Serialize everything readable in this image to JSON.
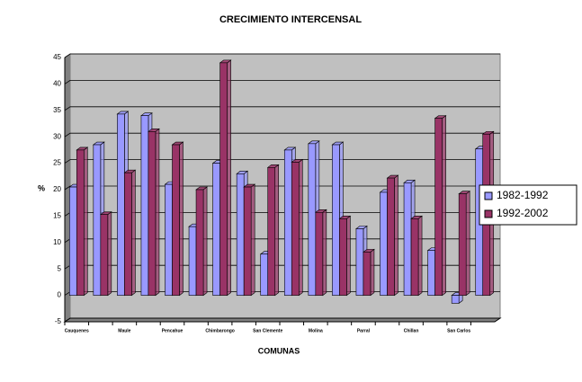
{
  "chart_data": {
    "type": "bar",
    "title": "CRECIMIENTO INTERCENSAL",
    "x_label": "COMUNAS",
    "y_label": "%",
    "categories": [
      "Cauquenes",
      null,
      "Maule",
      null,
      "Pencahue",
      null,
      "Chimbarongo",
      null,
      "San Clemente",
      null,
      "Molina",
      null,
      "Parral",
      null,
      "Chillan",
      null,
      "San Carlos",
      null
    ],
    "series": [
      {
        "name": "1982-1992",
        "color": "#9999ff",
        "values": [
          20.5,
          28.5,
          34.3,
          34,
          21,
          13,
          25,
          23,
          7.8,
          27.5,
          28.7,
          28.5,
          12.6,
          19.5,
          21.3,
          8.5,
          -1.5,
          27.7
        ]
      },
      {
        "name": "1992-2002",
        "color": "#993366",
        "values": [
          27.5,
          15.3,
          23.2,
          31,
          28.5,
          20,
          44,
          20.5,
          24.2,
          25.2,
          15.7,
          14.5,
          8.2,
          22.2,
          14.5,
          33.5,
          19.2,
          30.5
        ]
      }
    ],
    "ylim": [
      -5,
      45
    ],
    "yticks": [
      -5,
      0,
      5,
      10,
      15,
      20,
      25,
      30,
      35,
      40,
      45
    ],
    "grid": true,
    "legend": "right"
  }
}
